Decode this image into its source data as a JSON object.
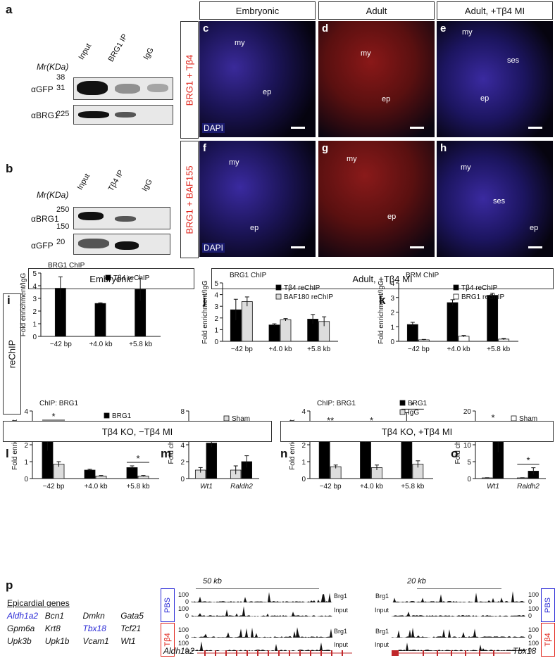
{
  "panel_labels": [
    "a",
    "b",
    "c",
    "d",
    "e",
    "f",
    "g",
    "h",
    "i",
    "j",
    "k",
    "l",
    "m",
    "n",
    "o",
    "p"
  ],
  "panel_a": {
    "mr_label": "Mr(KDa)",
    "lanes": [
      "Input",
      "BRG1 IP",
      "IgG"
    ],
    "rows": [
      {
        "label": "αGFP",
        "markers": [
          "38",
          "31"
        ]
      },
      {
        "label": "αBRG1",
        "markers": [
          "225"
        ]
      }
    ]
  },
  "panel_b": {
    "mr_label": "Mr(KDa)",
    "lanes": [
      "Input",
      "Tβ4 IP",
      "IgG"
    ],
    "rows": [
      {
        "label": "αBRG1",
        "markers": [
          "250",
          "150"
        ]
      },
      {
        "label": "αGFP",
        "markers": [
          "20"
        ]
      }
    ]
  },
  "micro_header": [
    "Embryonic",
    "Adult",
    "Adult, +Tβ4 MI"
  ],
  "micro_rows": [
    {
      "label": "BRG1 + Tβ4"
    },
    {
      "label": "BRG1 + BAF155"
    }
  ],
  "dapi": "DAPI",
  "tissue": {
    "my": "my",
    "ep": "ep",
    "ses": "ses"
  },
  "reChIP_label": "reChIP",
  "section1": {
    "left": "Embryonic",
    "right": "Adult, +Tβ4 MI"
  },
  "section2": {
    "left": "Tβ4 KO, −Tβ4 MI",
    "right": "Tβ4 KO, +Tβ4 MI"
  },
  "chart_data": [
    {
      "panel": "i",
      "type": "bar",
      "title": "BRG1 ChIP",
      "ylabel": "Fold enrichment/IgG",
      "ylim": [
        0,
        5
      ],
      "yticks": [
        0,
        1,
        2,
        3,
        4,
        5
      ],
      "categories": [
        "−42 bp",
        "+4.0 kb",
        "+5.8 kb"
      ],
      "series": [
        {
          "name": "Tβ4 reChIP",
          "values": [
            3.8,
            2.6,
            3.7
          ],
          "errors": [
            0.9,
            0.05,
            0.9
          ],
          "color": "#000000"
        }
      ]
    },
    {
      "panel": "j",
      "type": "bar",
      "title": "BRG1 ChIP",
      "ylabel": "Fold enrichment/IgG",
      "ylim": [
        0,
        5
      ],
      "yticks": [
        0,
        1,
        2,
        3,
        4,
        5
      ],
      "categories": [
        "−42 bp",
        "+4.0 kb",
        "+5.8 kb"
      ],
      "series": [
        {
          "name": "Tβ4 reChIP",
          "values": [
            2.7,
            1.4,
            1.9
          ],
          "errors": [
            0.9,
            0.1,
            0.4
          ],
          "color": "#000000"
        },
        {
          "name": "BAF180 reChIP",
          "values": [
            3.4,
            1.85,
            1.7
          ],
          "errors": [
            0.4,
            0.1,
            0.4
          ],
          "color": "#dddddd"
        }
      ]
    },
    {
      "panel": "k",
      "type": "bar",
      "title": "BRM ChIP",
      "ylabel": "Fold enrichment/IgG",
      "ylim": [
        0,
        4
      ],
      "yticks": [
        0,
        1,
        2,
        3,
        4
      ],
      "categories": [
        "−42 bp",
        "+4.0 kb",
        "+5.8 kb"
      ],
      "series": [
        {
          "name": "Tβ4 reChIP",
          "values": [
            1.15,
            2.65,
            3.15
          ],
          "errors": [
            0.15,
            0.2,
            0.15
          ],
          "color": "#000000"
        },
        {
          "name": "BRG1 reChIP",
          "values": [
            0.1,
            0.35,
            0.15
          ],
          "errors": [
            0.03,
            0.05,
            0.05
          ],
          "color": "#ffffff"
        }
      ]
    },
    {
      "panel": "l",
      "type": "bar",
      "title": "ChIP: BRG1",
      "ylabel": "Fold enrichment",
      "ylim": [
        0,
        4
      ],
      "yticks": [
        0,
        1,
        2,
        3,
        4
      ],
      "categories": [
        "−42 bp",
        "+4.0 kb",
        "+5.8 kb"
      ],
      "series": [
        {
          "name": "BRG1",
          "values": [
            2.45,
            0.5,
            0.65
          ],
          "errors": [
            0.8,
            0.05,
            0.1
          ],
          "color": "#000000"
        },
        {
          "name": "IgG",
          "values": [
            0.85,
            0.15,
            0.15
          ],
          "errors": [
            0.15,
            0.03,
            0.03
          ],
          "color": "#dddddd"
        }
      ],
      "sig": [
        {
          "index": 0,
          "text": "*"
        },
        {
          "index": 2,
          "text": "*"
        }
      ]
    },
    {
      "panel": "m",
      "type": "bar",
      "title": "",
      "ylabel": "Fold change",
      "ylim": [
        0,
        8
      ],
      "yticks": [
        0,
        2,
        4,
        6,
        8
      ],
      "categories": [
        "Wt1",
        "Raldh2"
      ],
      "series": [
        {
          "name": "Sham",
          "values": [
            1.0,
            1.0
          ],
          "errors": [
            0.3,
            0.5
          ],
          "color": "#dddddd"
        },
        {
          "name": "MI",
          "values": [
            4.2,
            2.0
          ],
          "errors": [
            0.5,
            0.7
          ],
          "color": "#000000"
        }
      ],
      "sig": [
        {
          "index": 0,
          "text": "*"
        }
      ]
    },
    {
      "panel": "n",
      "type": "bar",
      "title": "ChIP: BRG1",
      "ylabel": "Fold enrichment",
      "ylim": [
        0,
        4
      ],
      "yticks": [
        0,
        1,
        2,
        3,
        4
      ],
      "categories": [
        "−42 bp",
        "+4.0 kb",
        "+5.8 kb"
      ],
      "series": [
        {
          "name": "BRG1",
          "values": [
            2.8,
            2.55,
            3.35
          ],
          "errors": [
            0.2,
            0.45,
            0.55
          ],
          "color": "#000000"
        },
        {
          "name": "IgG",
          "values": [
            0.7,
            0.65,
            0.85
          ],
          "errors": [
            0.1,
            0.15,
            0.2
          ],
          "color": "#dddddd"
        }
      ],
      "sig": [
        {
          "index": 0,
          "text": "**"
        },
        {
          "index": 1,
          "text": "*"
        },
        {
          "index": 2,
          "text": "*"
        }
      ]
    },
    {
      "panel": "o",
      "type": "bar",
      "title": "",
      "ylabel": "Fold change",
      "ylim": [
        0,
        20
      ],
      "yticks": [
        0,
        5,
        10,
        15,
        20
      ],
      "categories": [
        "Wt1",
        "Raldh2"
      ],
      "series": [
        {
          "name": "Sham",
          "values": [
            0.2,
            0.2
          ],
          "errors": [
            0.05,
            0.05
          ],
          "color": "#ffffff"
        },
        {
          "name": "MI",
          "values": [
            11.8,
            2.2
          ],
          "errors": [
            4.0,
            1.0
          ],
          "color": "#000000"
        }
      ],
      "sig": [
        {
          "index": 0,
          "text": "*"
        },
        {
          "index": 1,
          "text": "*"
        }
      ]
    }
  ],
  "panel_p": {
    "heading": "Epicardial genes",
    "genes": [
      {
        "name": "Aldh1a2",
        "color": "#2b2bd6"
      },
      {
        "name": "Bcn1",
        "color": "#111111"
      },
      {
        "name": "Dmkn",
        "color": "#111111"
      },
      {
        "name": "Gata5",
        "color": "#111111"
      },
      {
        "name": "Gpm6a",
        "color": "#111111"
      },
      {
        "name": "Krt8",
        "color": "#111111"
      },
      {
        "name": "Tbx18",
        "color": "#2b2bd6"
      },
      {
        "name": "Tcf21",
        "color": "#111111"
      },
      {
        "name": "Upk3b",
        "color": "#111111"
      },
      {
        "name": "Upk1b",
        "color": "#111111"
      },
      {
        "name": "Vcam1",
        "color": "#111111"
      },
      {
        "name": "Wt1",
        "color": "#111111"
      }
    ],
    "left_scale": "50 kb",
    "right_scale": "20 kb",
    "track_max": "100",
    "track_min": "0",
    "track_brg1": "Brg1",
    "track_input": "Input",
    "pbs": "PBS",
    "tb4": "Tβ4",
    "gene_left": "Aldh1a2",
    "gene_right": "Tbx18"
  }
}
